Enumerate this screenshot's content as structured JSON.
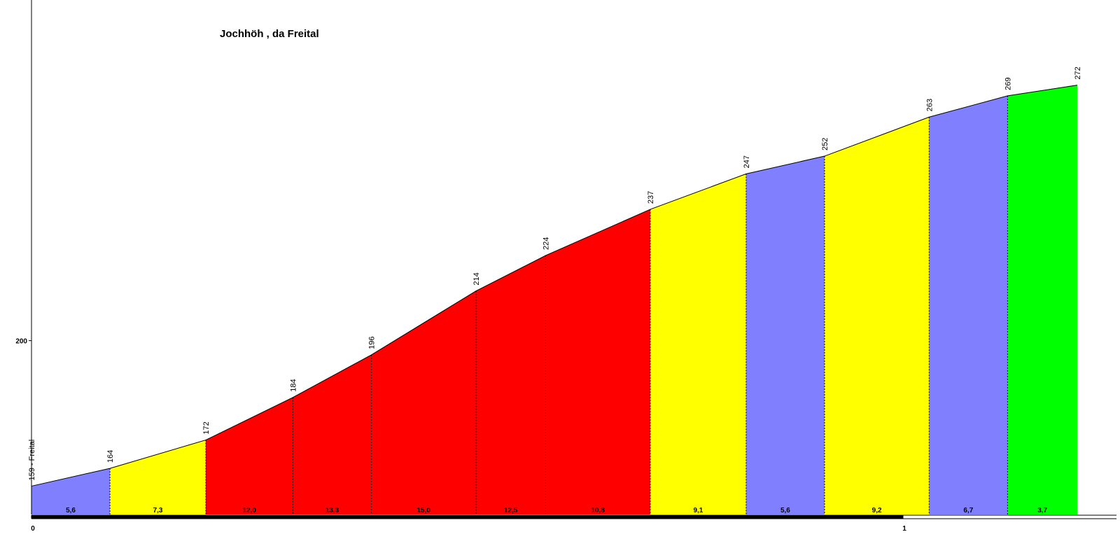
{
  "chart_data": {
    "type": "profile",
    "title": "Jochhöh , da Freital",
    "x": [
      0,
      0.09,
      0.2,
      0.3,
      0.39,
      0.51,
      0.59,
      0.71,
      0.82,
      0.91,
      1.03,
      1.12,
      1.2
    ],
    "values": [
      159,
      164,
      172,
      184,
      196,
      214,
      224,
      237,
      247,
      252,
      263,
      269,
      272
    ],
    "value_labels": [
      "159 - Freital",
      "164",
      "172",
      "184",
      "196",
      "214",
      "224",
      "237",
      "247",
      "252",
      "263",
      "269",
      "272"
    ],
    "segments": {
      "values": [
        5.6,
        7.3,
        12.0,
        13.3,
        15.0,
        12.5,
        10.8,
        9.1,
        5.6,
        9.2,
        6.7,
        3.7
      ],
      "value_labels": [
        "5,6",
        "7,3",
        "12,0",
        "13,3",
        "15,0",
        "12,5",
        "10,8",
        "9,1",
        "5,6",
        "9,2",
        "6,7",
        "3,7"
      ],
      "colors": [
        "#8080ff",
        "#ffff00",
        "#ff0000",
        "#ff0000",
        "#ff0000",
        "#ff0000",
        "#ff0000",
        "#ffff00",
        "#8080ff",
        "#ffff00",
        "#8080ff",
        "#00ff00"
      ]
    },
    "xlim": [
      0,
      1.245
    ],
    "ylim": [
      151,
      296
    ],
    "xticks": [
      0,
      1
    ],
    "yticks": [
      200
    ]
  }
}
